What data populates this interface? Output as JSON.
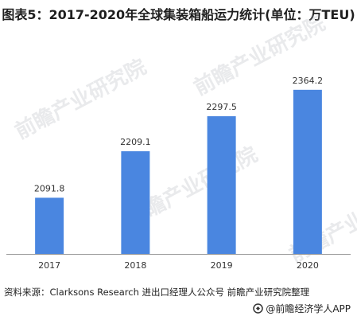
{
  "title": "图表5：2017-2020年全球集装箱船运力统计(单位：万TEU)",
  "chart_data": {
    "type": "bar",
    "categories": [
      "2017",
      "2018",
      "2019",
      "2020"
    ],
    "values": [
      2091.8,
      2209.1,
      2297.5,
      2364.2
    ],
    "data_labels": [
      "2091.8",
      "2209.1",
      "2297.5",
      "2364.2"
    ],
    "ylim": [
      1950,
      2400
    ],
    "grid": false,
    "legend": "none"
  },
  "colors": {
    "bar": "#4a86e0",
    "axis": "#9a9a9a"
  },
  "footer": {
    "source": "资料来源：Clarksons Research 进出口经理人公众号 前瞻产业研究院整理",
    "brand": "@前瞻经济学人APP",
    "brand_icon": "qianzhan-logo-icon"
  },
  "watermark": "前瞻产业研究院"
}
